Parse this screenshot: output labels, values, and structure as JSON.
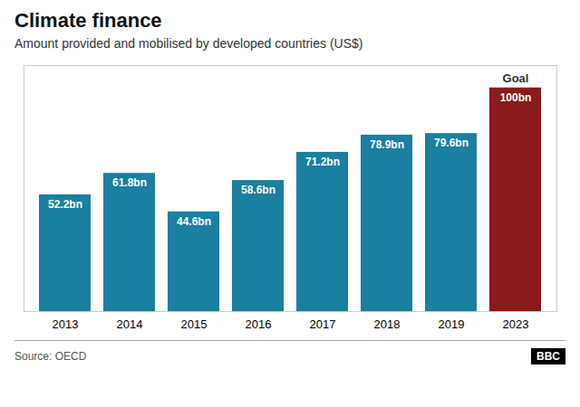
{
  "chart_data": {
    "type": "bar",
    "title": "Climate finance",
    "subtitle": "Amount provided and mobilised by developed countries (US$)",
    "categories": [
      "2013",
      "2014",
      "2015",
      "2016",
      "2017",
      "2018",
      "2019",
      "2023"
    ],
    "values": [
      52.2,
      61.8,
      44.6,
      58.6,
      71.2,
      78.9,
      79.6,
      100
    ],
    "value_labels": [
      "52.2bn",
      "61.8bn",
      "44.6bn",
      "58.6bn",
      "71.2bn",
      "78.9bn",
      "79.6bn",
      "100bn"
    ],
    "colors": [
      "#1a7fa0",
      "#1a7fa0",
      "#1a7fa0",
      "#1a7fa0",
      "#1a7fa0",
      "#1a7fa0",
      "#1a7fa0",
      "#8b1a1a"
    ],
    "ylim": [
      0,
      110
    ],
    "tick_labels": "x",
    "data_labels": true,
    "grid": false,
    "annotations": [
      {
        "text": "Goal",
        "x": "2023",
        "y": 100
      }
    ],
    "source": "Source: OECD",
    "logo": "BBC"
  }
}
